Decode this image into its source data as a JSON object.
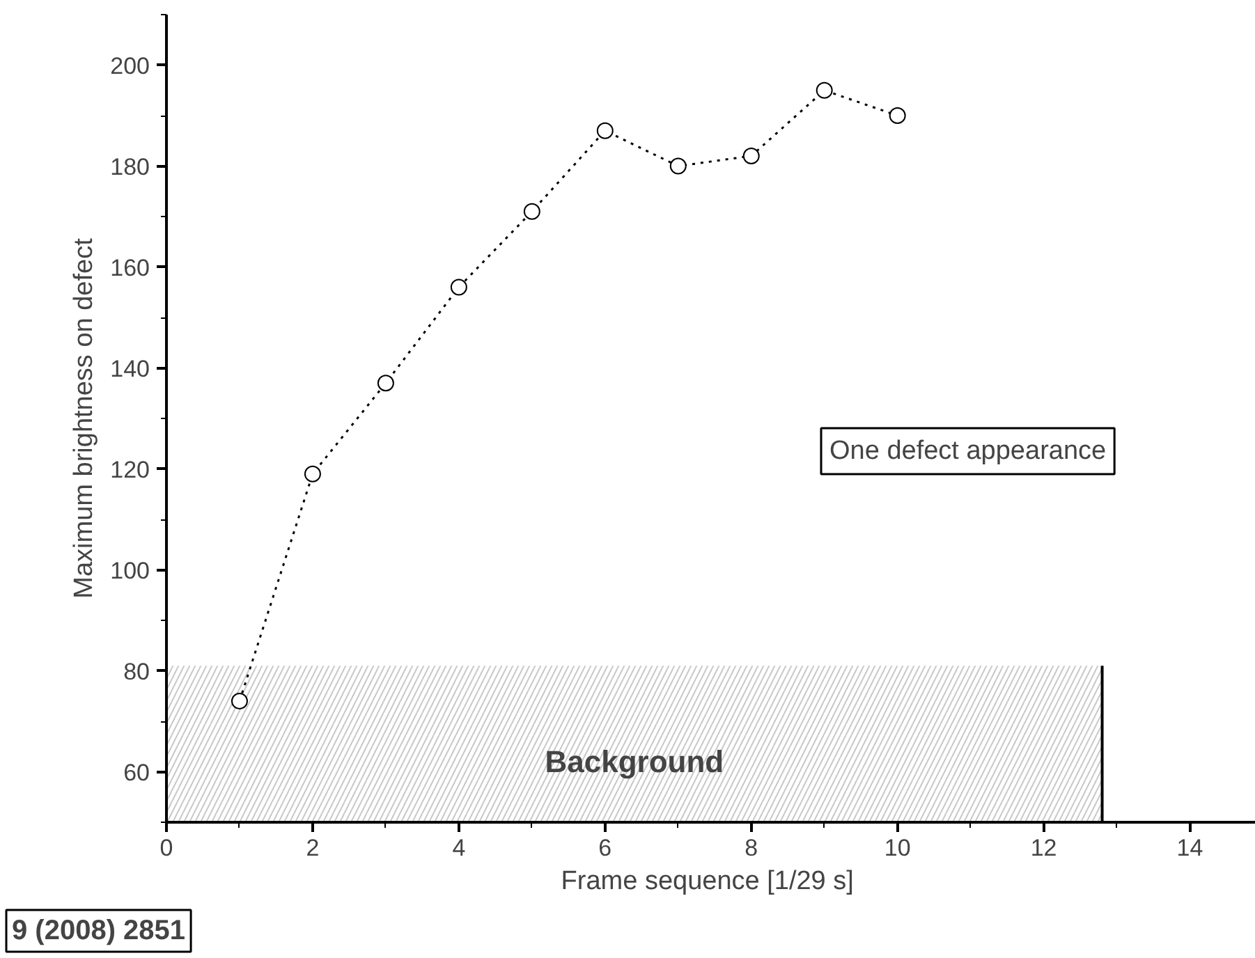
{
  "chart_data": {
    "type": "line",
    "xlabel": "Frame sequence  [1/29 s]",
    "ylabel": "Maximum brightness on defect",
    "x": [
      1,
      2,
      3,
      4,
      5,
      6,
      7,
      8,
      9,
      10
    ],
    "series": [
      {
        "color": "#000000",
        "values": [
          74,
          119,
          137,
          156,
          171,
          187,
          180,
          182,
          195,
          190
        ]
      }
    ],
    "xlim": [
      0,
      14.9
    ],
    "ylim": [
      50,
      210
    ],
    "xticks": [
      0,
      2,
      4,
      6,
      8,
      10,
      12,
      14
    ],
    "yticks": [
      60,
      80,
      100,
      120,
      140,
      160,
      180,
      200
    ],
    "marker": "circle",
    "line_style": "dotted",
    "ref_lines": [
      {
        "axis": "x",
        "value": 12.8,
        "color": "#000000"
      }
    ],
    "bands": [
      {
        "axis": "y",
        "from": 50,
        "to": 81,
        "label": "Background",
        "color": "#c8c8c8"
      }
    ],
    "annotations": [
      "One defect appearance",
      "9 (2008) 2851"
    ]
  }
}
